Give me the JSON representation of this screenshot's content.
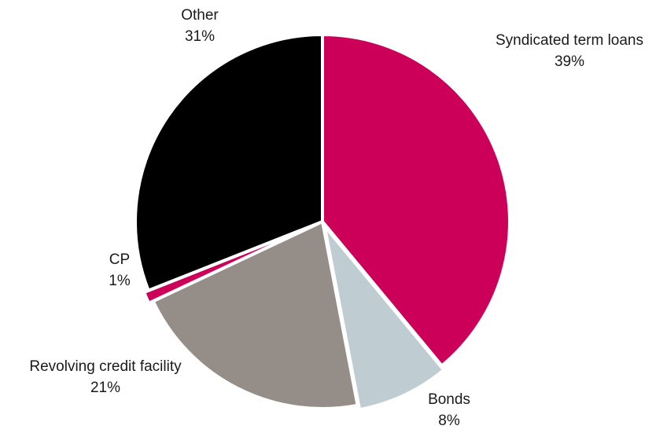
{
  "chart_data": {
    "type": "pie",
    "title": "",
    "start_angle_deg": 0,
    "direction": "clockwise",
    "legend": "none",
    "slices": [
      {
        "label": "Syndicated term loans",
        "value": 39,
        "value_label": "39%",
        "color": "#cc0058"
      },
      {
        "label": "Bonds",
        "value": 8,
        "value_label": "8%",
        "color": "#bfcdd2"
      },
      {
        "label": "Revolving credit facility",
        "value": 21,
        "value_label": "21%",
        "color": "#958d88"
      },
      {
        "label": "CP",
        "value": 1,
        "value_label": "1%",
        "color": "#cc0058"
      },
      {
        "label": "Other",
        "value": 31,
        "value_label": "31%",
        "color": "#000000"
      }
    ]
  }
}
